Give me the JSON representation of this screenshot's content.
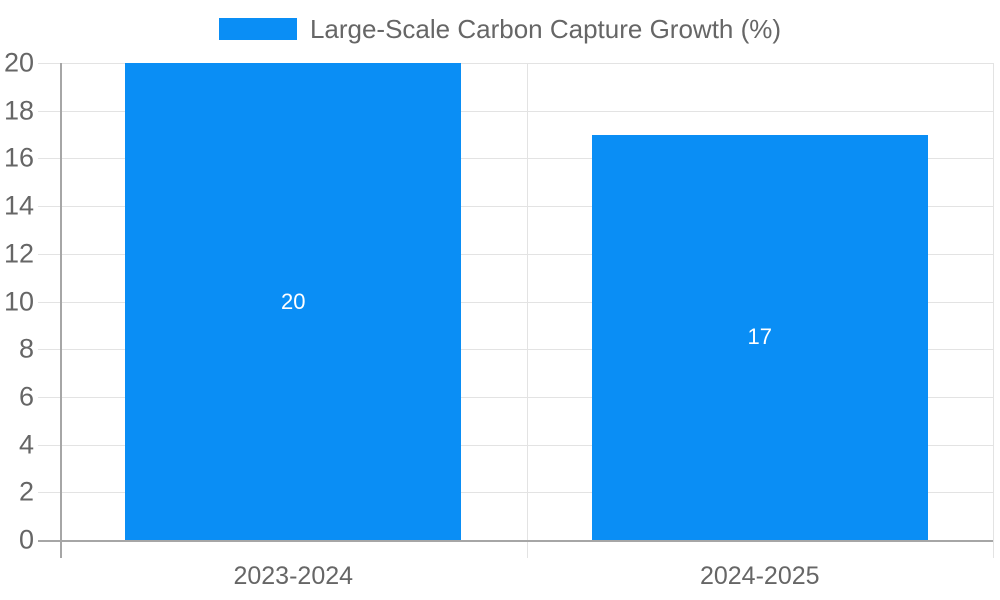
{
  "chart_data": {
    "type": "bar",
    "title": "",
    "legend": "Large-Scale Carbon Capture Growth (%)",
    "legend_position": "top",
    "categories": [
      "2023-2024",
      "2024-2025"
    ],
    "series": [
      {
        "name": "Large-Scale Carbon Capture Growth (%)",
        "values": [
          20,
          17
        ]
      }
    ],
    "data_labels": [
      "20",
      "17"
    ],
    "xlabel": "",
    "ylabel": "",
    "ylim": [
      0,
      20
    ],
    "yticks": [
      0,
      2,
      4,
      6,
      8,
      10,
      12,
      14,
      16,
      18,
      20
    ],
    "grid": true,
    "colors": {
      "bar": "#0a8ef5",
      "grid": "#e3e3e3",
      "axis": "#a6a6a6",
      "tick_text": "#666666",
      "data_label_text": "#ffffff",
      "background": "#ffffff"
    }
  }
}
